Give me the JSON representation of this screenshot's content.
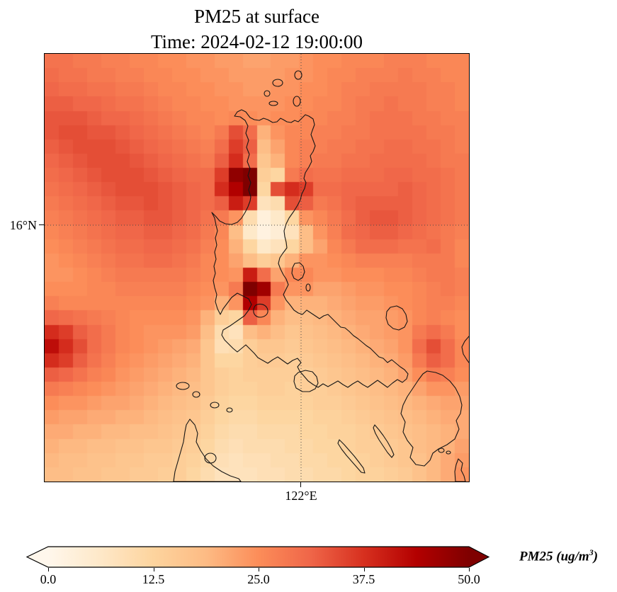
{
  "chart_data": {
    "type": "heatmap",
    "title": "PM25 at surface",
    "subtitle": "Time: 2024-02-12 19:00:00",
    "variable": "PM25",
    "colormap": "OrRd",
    "vmin": 0,
    "vmax": 50,
    "colormap_stops": [
      {
        "pos": 0.0,
        "color": "#fff7ec"
      },
      {
        "pos": 0.125,
        "color": "#fee8c8"
      },
      {
        "pos": 0.25,
        "color": "#fdd49e"
      },
      {
        "pos": 0.375,
        "color": "#fdbb84"
      },
      {
        "pos": 0.5,
        "color": "#fc8d59"
      },
      {
        "pos": 0.625,
        "color": "#ef6548"
      },
      {
        "pos": 0.75,
        "color": "#d7301f"
      },
      {
        "pos": 0.875,
        "color": "#b30000"
      },
      {
        "pos": 1.0,
        "color": "#7f0000"
      }
    ],
    "axes": {
      "x_tick_label": "122°E",
      "y_tick_label": "16°N",
      "x_tick_frac": 0.604,
      "y_tick_frac": 0.401,
      "grid_style": "dotted"
    },
    "colorbar": {
      "label_prefix": "PM25 (ug/m",
      "label_sup": "3",
      "label_suffix": ")",
      "tick_labels": [
        "0.0",
        "12.5",
        "25.0",
        "37.5",
        "50.0"
      ],
      "tick_values": [
        0,
        12.5,
        25,
        37.5,
        50
      ],
      "extend": "both",
      "orientation": "horizontal"
    },
    "grid_shape": [
      30,
      30
    ],
    "values": [
      [
        29,
        29,
        28,
        28,
        27,
        27,
        26,
        26,
        25,
        25,
        24,
        24,
        23,
        23,
        22,
        22,
        23,
        23,
        24,
        25,
        25,
        26,
        26,
        26,
        27,
        27,
        27,
        26,
        26,
        26
      ],
      [
        30,
        29,
        29,
        28,
        28,
        27,
        27,
        26,
        26,
        25,
        25,
        24,
        24,
        23,
        23,
        23,
        23,
        24,
        24,
        25,
        26,
        26,
        27,
        27,
        27,
        28,
        27,
        27,
        26,
        26
      ],
      [
        31,
        30,
        30,
        29,
        29,
        28,
        28,
        27,
        26,
        26,
        25,
        25,
        24,
        24,
        23,
        23,
        24,
        24,
        25,
        25,
        26,
        27,
        27,
        28,
        28,
        28,
        28,
        27,
        27,
        26
      ],
      [
        32,
        32,
        31,
        31,
        30,
        29,
        29,
        28,
        27,
        26,
        26,
        25,
        25,
        24,
        24,
        24,
        24,
        25,
        25,
        26,
        26,
        27,
        28,
        28,
        29,
        28,
        28,
        27,
        27,
        26
      ],
      [
        33,
        33,
        33,
        32,
        31,
        31,
        30,
        29,
        28,
        27,
        26,
        26,
        25,
        26,
        25,
        24,
        25,
        25,
        26,
        26,
        27,
        27,
        28,
        29,
        29,
        29,
        28,
        28,
        27,
        27
      ],
      [
        33,
        34,
        34,
        33,
        33,
        32,
        31,
        30,
        29,
        28,
        27,
        26,
        28,
        34,
        30,
        20,
        24,
        26,
        26,
        27,
        27,
        28,
        28,
        29,
        29,
        29,
        29,
        28,
        28,
        27
      ],
      [
        32,
        33,
        34,
        34,
        34,
        33,
        32,
        31,
        30,
        29,
        28,
        27,
        30,
        36,
        32,
        18,
        22,
        26,
        27,
        27,
        28,
        28,
        29,
        29,
        30,
        30,
        29,
        29,
        28,
        27
      ],
      [
        31,
        32,
        33,
        34,
        34,
        34,
        33,
        32,
        31,
        30,
        29,
        28,
        32,
        38,
        30,
        16,
        20,
        26,
        27,
        28,
        28,
        29,
        29,
        30,
        30,
        30,
        30,
        29,
        28,
        28
      ],
      [
        30,
        31,
        32,
        33,
        34,
        34,
        34,
        33,
        32,
        31,
        30,
        30,
        36,
        48,
        52,
        14,
        12,
        28,
        30,
        29,
        29,
        30,
        30,
        30,
        31,
        31,
        30,
        30,
        29,
        28
      ],
      [
        29,
        30,
        31,
        32,
        33,
        34,
        34,
        34,
        33,
        32,
        31,
        30,
        38,
        44,
        54,
        12,
        34,
        38,
        36,
        30,
        30,
        31,
        31,
        31,
        31,
        32,
        31,
        30,
        29,
        28
      ],
      [
        28,
        29,
        30,
        31,
        32,
        33,
        33,
        34,
        33,
        32,
        31,
        30,
        32,
        40,
        36,
        8,
        10,
        34,
        32,
        28,
        29,
        31,
        32,
        32,
        32,
        32,
        31,
        30,
        29,
        28
      ],
      [
        27,
        28,
        29,
        30,
        31,
        32,
        32,
        33,
        33,
        32,
        31,
        29,
        28,
        24,
        10,
        3,
        6,
        12,
        24,
        26,
        28,
        30,
        32,
        33,
        33,
        32,
        31,
        30,
        29,
        28
      ],
      [
        26,
        27,
        28,
        29,
        30,
        31,
        31,
        32,
        32,
        31,
        30,
        28,
        26,
        18,
        6,
        2,
        4,
        8,
        18,
        24,
        27,
        30,
        31,
        32,
        32,
        31,
        30,
        29,
        28,
        27
      ],
      [
        25,
        26,
        27,
        28,
        29,
        30,
        30,
        31,
        31,
        30,
        29,
        27,
        25,
        20,
        12,
        6,
        8,
        12,
        18,
        22,
        26,
        28,
        30,
        30,
        30,
        29,
        29,
        30,
        28,
        26
      ],
      [
        24,
        25,
        26,
        27,
        28,
        29,
        29,
        30,
        30,
        29,
        28,
        26,
        25,
        22,
        18,
        14,
        16,
        20,
        24,
        24,
        25,
        26,
        27,
        27,
        27,
        27,
        28,
        28,
        28,
        26
      ],
      [
        24,
        24,
        25,
        26,
        27,
        28,
        28,
        28,
        28,
        28,
        27,
        26,
        25,
        24,
        40,
        30,
        22,
        26,
        26,
        24,
        24,
        25,
        25,
        25,
        26,
        26,
        27,
        28,
        28,
        27
      ],
      [
        25,
        25,
        25,
        26,
        26,
        27,
        27,
        27,
        27,
        27,
        26,
        25,
        24,
        28,
        52,
        46,
        28,
        24,
        24,
        22,
        22,
        23,
        24,
        24,
        25,
        25,
        26,
        27,
        28,
        27
      ],
      [
        27,
        26,
        26,
        26,
        26,
        26,
        26,
        26,
        26,
        26,
        25,
        24,
        20,
        24,
        44,
        36,
        24,
        20,
        20,
        20,
        21,
        22,
        23,
        23,
        24,
        25,
        26,
        27,
        27,
        26
      ],
      [
        31,
        30,
        29,
        28,
        27,
        26,
        25,
        25,
        25,
        25,
        24,
        20,
        14,
        12,
        32,
        26,
        20,
        18,
        18,
        19,
        20,
        21,
        22,
        22,
        23,
        24,
        26,
        27,
        26,
        25
      ],
      [
        38,
        36,
        32,
        30,
        28,
        26,
        25,
        24,
        24,
        24,
        23,
        18,
        10,
        8,
        18,
        20,
        18,
        16,
        17,
        18,
        19,
        20,
        21,
        22,
        23,
        24,
        28,
        30,
        28,
        25
      ],
      [
        42,
        38,
        34,
        30,
        28,
        26,
        25,
        24,
        23,
        22,
        21,
        16,
        9,
        10,
        14,
        16,
        16,
        15,
        16,
        17,
        18,
        19,
        20,
        21,
        22,
        24,
        30,
        34,
        30,
        26
      ],
      [
        38,
        36,
        32,
        29,
        27,
        25,
        24,
        23,
        22,
        21,
        20,
        16,
        12,
        12,
        14,
        15,
        15,
        14,
        15,
        16,
        17,
        18,
        19,
        20,
        21,
        23,
        28,
        32,
        30,
        26
      ],
      [
        32,
        31,
        29,
        27,
        26,
        24,
        23,
        22,
        21,
        20,
        19,
        16,
        14,
        13,
        14,
        14,
        14,
        14,
        14,
        15,
        16,
        17,
        18,
        19,
        20,
        22,
        25,
        28,
        27,
        25
      ],
      [
        28,
        27,
        26,
        25,
        24,
        23,
        22,
        21,
        20,
        19,
        18,
        16,
        14,
        13,
        13,
        14,
        14,
        13,
        14,
        14,
        15,
        16,
        17,
        18,
        19,
        20,
        22,
        24,
        24,
        23
      ],
      [
        25,
        24,
        24,
        23,
        22,
        22,
        21,
        20,
        19,
        18,
        17,
        15,
        13,
        12,
        12,
        13,
        13,
        13,
        13,
        14,
        14,
        15,
        16,
        17,
        18,
        19,
        20,
        21,
        22,
        22
      ],
      [
        23,
        22,
        22,
        21,
        21,
        20,
        20,
        19,
        18,
        17,
        16,
        14,
        12,
        11,
        11,
        12,
        12,
        12,
        12,
        13,
        13,
        14,
        15,
        16,
        17,
        18,
        19,
        20,
        21,
        21
      ],
      [
        21,
        21,
        20,
        20,
        19,
        19,
        18,
        18,
        17,
        16,
        15,
        13,
        11,
        10,
        10,
        11,
        11,
        11,
        12,
        12,
        13,
        13,
        14,
        15,
        16,
        17,
        18,
        19,
        20,
        21
      ],
      [
        20,
        19,
        19,
        18,
        18,
        17,
        17,
        16,
        16,
        15,
        14,
        12,
        10,
        9,
        10,
        10,
        10,
        11,
        11,
        12,
        12,
        13,
        14,
        14,
        15,
        16,
        18,
        19,
        20,
        22
      ],
      [
        19,
        18,
        18,
        17,
        17,
        16,
        16,
        15,
        15,
        14,
        13,
        11,
        9,
        8,
        9,
        9,
        10,
        10,
        11,
        11,
        12,
        12,
        13,
        14,
        15,
        16,
        17,
        19,
        21,
        23
      ],
      [
        18,
        18,
        17,
        17,
        16,
        16,
        15,
        15,
        14,
        14,
        12,
        10,
        8,
        8,
        8,
        9,
        9,
        10,
        10,
        11,
        11,
        12,
        13,
        13,
        14,
        15,
        17,
        19,
        21,
        24
      ]
    ]
  }
}
